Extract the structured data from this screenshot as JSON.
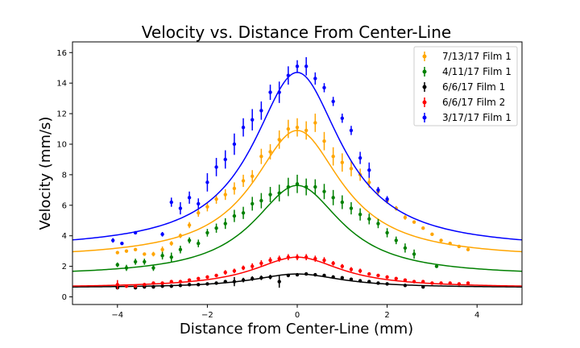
{
  "chart_data": {
    "type": "scatter",
    "title": "Velocity vs. Distance From Center-Line",
    "xlabel": "Distance from Center-Line (mm)",
    "ylabel": "Velocity (mm/s)",
    "xlim": [
      -5,
      5
    ],
    "ylim": [
      -0.5,
      16.7
    ],
    "xticks": [
      -4,
      -2,
      0,
      2,
      4
    ],
    "yticks": [
      0,
      2,
      4,
      6,
      8,
      10,
      12,
      14,
      16
    ],
    "grid": false,
    "legend_position": "top-right",
    "series": [
      {
        "name": "7/13/17 Film 1",
        "color": "#ffa500",
        "fit": {
          "base": 2.5,
          "peak": 10.9,
          "width": 1.2
        },
        "points": [
          [
            -4.0,
            2.9,
            0.1
          ],
          [
            -3.8,
            3.0,
            0.1
          ],
          [
            -3.6,
            3.1,
            0.1
          ],
          [
            -3.4,
            2.8,
            0.1
          ],
          [
            -3.2,
            2.8,
            0.15
          ],
          [
            -3.0,
            3.1,
            0.2
          ],
          [
            -2.8,
            3.5,
            0.15
          ],
          [
            -2.6,
            4.0,
            0.15
          ],
          [
            -2.4,
            4.7,
            0.2
          ],
          [
            -2.2,
            5.5,
            0.25
          ],
          [
            -2.0,
            5.9,
            0.3
          ],
          [
            -1.8,
            6.4,
            0.3
          ],
          [
            -1.6,
            6.7,
            0.35
          ],
          [
            -1.4,
            7.1,
            0.4
          ],
          [
            -1.2,
            7.6,
            0.4
          ],
          [
            -1.0,
            7.9,
            0.4
          ],
          [
            -0.8,
            9.2,
            0.5
          ],
          [
            -0.6,
            9.5,
            0.5
          ],
          [
            -0.4,
            10.3,
            0.6
          ],
          [
            -0.2,
            11.0,
            0.6
          ],
          [
            0.0,
            11.1,
            0.6
          ],
          [
            0.2,
            10.9,
            0.6
          ],
          [
            0.4,
            11.4,
            0.6
          ],
          [
            0.6,
            10.2,
            0.6
          ],
          [
            0.8,
            9.2,
            0.6
          ],
          [
            1.0,
            8.8,
            0.6
          ],
          [
            1.2,
            8.4,
            0.5
          ],
          [
            1.4,
            8.0,
            0.4
          ],
          [
            1.6,
            7.5,
            0.35
          ],
          [
            1.8,
            6.9,
            0.3
          ],
          [
            2.0,
            6.3,
            0.2
          ],
          [
            2.2,
            5.8,
            0.15
          ],
          [
            2.4,
            5.2,
            0.15
          ],
          [
            2.6,
            4.9,
            0.1
          ],
          [
            2.8,
            4.5,
            0.1
          ],
          [
            3.0,
            4.1,
            0.1
          ],
          [
            3.2,
            3.7,
            0.1
          ],
          [
            3.4,
            3.5,
            0.1
          ],
          [
            3.6,
            3.3,
            0.1
          ],
          [
            3.8,
            3.1,
            0.1
          ]
        ]
      },
      {
        "name": "4/11/17 Film 1",
        "color": "#008000",
        "fit": {
          "base": 1.35,
          "peak": 7.3,
          "width": 1.2
        },
        "points": [
          [
            -4.0,
            2.1,
            0.15
          ],
          [
            -3.8,
            1.9,
            0.2
          ],
          [
            -3.6,
            2.3,
            0.2
          ],
          [
            -3.4,
            2.3,
            0.2
          ],
          [
            -3.2,
            1.9,
            0.2
          ],
          [
            -3.0,
            2.7,
            0.25
          ],
          [
            -2.8,
            2.6,
            0.3
          ],
          [
            -2.6,
            3.1,
            0.25
          ],
          [
            -2.4,
            3.7,
            0.2
          ],
          [
            -2.2,
            3.5,
            0.25
          ],
          [
            -2.0,
            4.2,
            0.25
          ],
          [
            -1.8,
            4.5,
            0.3
          ],
          [
            -1.6,
            4.8,
            0.35
          ],
          [
            -1.4,
            5.3,
            0.4
          ],
          [
            -1.2,
            5.5,
            0.4
          ],
          [
            -1.0,
            6.1,
            0.45
          ],
          [
            -0.8,
            6.3,
            0.5
          ],
          [
            -0.6,
            6.7,
            0.5
          ],
          [
            -0.4,
            6.8,
            0.55
          ],
          [
            -0.2,
            7.2,
            0.6
          ],
          [
            0.0,
            7.4,
            0.6
          ],
          [
            0.2,
            7.2,
            0.55
          ],
          [
            0.4,
            7.2,
            0.5
          ],
          [
            0.6,
            6.9,
            0.5
          ],
          [
            0.8,
            6.5,
            0.5
          ],
          [
            1.0,
            6.2,
            0.45
          ],
          [
            1.2,
            5.8,
            0.4
          ],
          [
            1.4,
            5.4,
            0.4
          ],
          [
            1.6,
            5.1,
            0.35
          ],
          [
            1.8,
            4.8,
            0.3
          ],
          [
            2.0,
            4.2,
            0.3
          ],
          [
            2.2,
            3.7,
            0.25
          ],
          [
            2.4,
            3.2,
            0.3
          ],
          [
            2.6,
            2.8,
            0.3
          ],
          [
            3.1,
            2.0,
            0.1
          ]
        ]
      },
      {
        "name": "6/6/17 Film 1",
        "color": "#000000",
        "fit": {
          "base": 0.6,
          "peak": 1.5,
          "width": 1.2
        },
        "points": [
          [
            -4.0,
            0.6,
            0.05
          ],
          [
            -3.6,
            0.6,
            0.05
          ],
          [
            -3.4,
            0.65,
            0.05
          ],
          [
            -3.2,
            0.65,
            0.05
          ],
          [
            -3.0,
            0.7,
            0.05
          ],
          [
            -2.8,
            0.7,
            0.05
          ],
          [
            -2.6,
            0.75,
            0.05
          ],
          [
            -2.4,
            0.8,
            0.05
          ],
          [
            -2.2,
            0.8,
            0.05
          ],
          [
            -2.0,
            0.85,
            0.05
          ],
          [
            -1.8,
            0.9,
            0.05
          ],
          [
            -1.6,
            1.0,
            0.1
          ],
          [
            -1.4,
            1.0,
            0.3
          ],
          [
            -1.2,
            1.1,
            0.15
          ],
          [
            -1.0,
            1.2,
            0.15
          ],
          [
            -0.8,
            1.25,
            0.15
          ],
          [
            -0.6,
            1.3,
            0.15
          ],
          [
            -0.4,
            1.0,
            0.4
          ],
          [
            -0.2,
            1.4,
            0.1
          ],
          [
            0.0,
            1.45,
            0.1
          ],
          [
            0.2,
            1.5,
            0.1
          ],
          [
            0.4,
            1.45,
            0.1
          ],
          [
            0.6,
            1.4,
            0.1
          ],
          [
            0.8,
            1.3,
            0.1
          ],
          [
            1.0,
            1.25,
            0.1
          ],
          [
            1.2,
            1.15,
            0.1
          ],
          [
            1.4,
            1.05,
            0.1
          ],
          [
            1.6,
            1.0,
            0.1
          ],
          [
            1.8,
            0.9,
            0.1
          ],
          [
            2.0,
            0.85,
            0.05
          ],
          [
            2.4,
            0.75,
            0.05
          ],
          [
            2.8,
            0.65,
            0.05
          ]
        ]
      },
      {
        "name": "6/6/17 Film 2",
        "color": "#ff0000",
        "fit": {
          "base": 0.6,
          "peak": 2.6,
          "width": 1.2
        },
        "points": [
          [
            -4.0,
            0.8,
            0.3
          ],
          [
            -3.8,
            0.7,
            0.1
          ],
          [
            -3.6,
            0.7,
            0.1
          ],
          [
            -3.4,
            0.8,
            0.1
          ],
          [
            -3.2,
            0.9,
            0.1
          ],
          [
            -3.0,
            0.9,
            0.1
          ],
          [
            -2.8,
            1.0,
            0.1
          ],
          [
            -2.6,
            1.0,
            0.1
          ],
          [
            -2.4,
            1.1,
            0.1
          ],
          [
            -2.2,
            1.2,
            0.1
          ],
          [
            -2.0,
            1.3,
            0.1
          ],
          [
            -1.8,
            1.4,
            0.1
          ],
          [
            -1.6,
            1.6,
            0.15
          ],
          [
            -1.4,
            1.7,
            0.15
          ],
          [
            -1.2,
            1.9,
            0.15
          ],
          [
            -1.0,
            2.0,
            0.2
          ],
          [
            -0.8,
            2.2,
            0.2
          ],
          [
            -0.6,
            2.4,
            0.2
          ],
          [
            -0.4,
            2.5,
            0.2
          ],
          [
            -0.2,
            2.6,
            0.2
          ],
          [
            0.0,
            2.6,
            0.2
          ],
          [
            0.2,
            2.6,
            0.2
          ],
          [
            0.4,
            2.5,
            0.2
          ],
          [
            0.6,
            2.4,
            0.2
          ],
          [
            0.8,
            2.2,
            0.15
          ],
          [
            1.0,
            2.0,
            0.15
          ],
          [
            1.2,
            1.8,
            0.15
          ],
          [
            1.4,
            1.7,
            0.15
          ],
          [
            1.6,
            1.5,
            0.1
          ],
          [
            1.8,
            1.4,
            0.1
          ],
          [
            2.0,
            1.3,
            0.1
          ],
          [
            2.2,
            1.2,
            0.1
          ],
          [
            2.4,
            1.1,
            0.1
          ],
          [
            2.6,
            1.0,
            0.1
          ],
          [
            2.8,
            1.0,
            0.1
          ],
          [
            3.0,
            0.9,
            0.1
          ],
          [
            3.2,
            0.9,
            0.1
          ],
          [
            3.4,
            0.9,
            0.1
          ],
          [
            3.6,
            0.85,
            0.1
          ],
          [
            3.8,
            0.9,
            0.1
          ]
        ]
      },
      {
        "name": "3/17/17 Film 1",
        "color": "#0000ff",
        "fit": {
          "base": 3.1,
          "peak": 14.7,
          "width": 1.2
        },
        "points": [
          [
            -4.1,
            3.7,
            0.15
          ],
          [
            -3.9,
            3.5,
            0.1
          ],
          [
            -3.6,
            4.2,
            0.1
          ],
          [
            -3.0,
            4.1,
            0.15
          ],
          [
            -2.8,
            6.2,
            0.3
          ],
          [
            -2.6,
            5.8,
            0.4
          ],
          [
            -2.4,
            6.5,
            0.4
          ],
          [
            -2.2,
            6.1,
            0.35
          ],
          [
            -2.0,
            7.5,
            0.6
          ],
          [
            -1.8,
            8.5,
            0.6
          ],
          [
            -1.6,
            9.0,
            0.6
          ],
          [
            -1.4,
            10.0,
            0.7
          ],
          [
            -1.2,
            11.1,
            0.6
          ],
          [
            -1.0,
            11.6,
            0.7
          ],
          [
            -0.8,
            12.2,
            0.6
          ],
          [
            -0.6,
            13.4,
            0.5
          ],
          [
            -0.4,
            13.4,
            0.7
          ],
          [
            -0.2,
            14.5,
            0.6
          ],
          [
            0.0,
            15.1,
            0.4
          ],
          [
            0.2,
            15.1,
            0.6
          ],
          [
            0.4,
            14.3,
            0.4
          ],
          [
            0.6,
            13.7,
            0.3
          ],
          [
            0.8,
            12.8,
            0.3
          ],
          [
            1.0,
            11.7,
            0.3
          ],
          [
            1.2,
            10.9,
            0.3
          ],
          [
            1.4,
            9.1,
            0.4
          ],
          [
            1.6,
            8.3,
            0.5
          ],
          [
            1.8,
            7.0,
            0.2
          ],
          [
            2.0,
            6.4,
            0.2
          ]
        ]
      }
    ]
  }
}
